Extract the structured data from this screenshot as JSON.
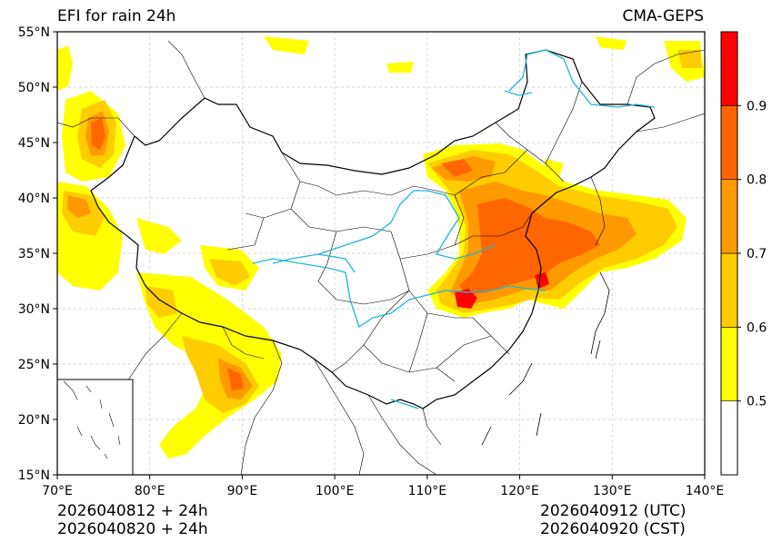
{
  "title_left": "EFI for rain 24h",
  "title_right": "CMA-GEPS",
  "footer": {
    "left_line1": "2026040812 + 24h",
    "left_line2": "2026040820 + 24h",
    "right_line1": "2026040912 (UTC)",
    "right_line2": "2026040920 (CST)"
  },
  "map": {
    "lon_range": [
      70,
      140
    ],
    "lat_range": [
      15,
      55
    ],
    "lon_ticks": [
      {
        "value": 70,
        "label": "70°E"
      },
      {
        "value": 80,
        "label": "80°E"
      },
      {
        "value": 90,
        "label": "90°E"
      },
      {
        "value": 100,
        "label": "100°E"
      },
      {
        "value": 110,
        "label": "110°E"
      },
      {
        "value": 120,
        "label": "120°E"
      },
      {
        "value": 130,
        "label": "130°E"
      },
      {
        "value": 140,
        "label": "140°E"
      }
    ],
    "lat_ticks": [
      {
        "value": 15,
        "label": "15°N"
      },
      {
        "value": 20,
        "label": "20°N"
      },
      {
        "value": 25,
        "label": "25°N"
      },
      {
        "value": 30,
        "label": "30°N"
      },
      {
        "value": 35,
        "label": "35°N"
      },
      {
        "value": 40,
        "label": "40°N"
      },
      {
        "value": 45,
        "label": "45°N"
      },
      {
        "value": 50,
        "label": "50°N"
      },
      {
        "value": 55,
        "label": "55°N"
      }
    ],
    "grid": true
  },
  "colorbar": {
    "levels": [
      0.5,
      0.6,
      0.7,
      0.8,
      0.9
    ],
    "labels": [
      "0.5",
      "0.6",
      "0.7",
      "0.8",
      "0.9"
    ],
    "colors": [
      "#ffffff",
      "#ffff00",
      "#ffcc00",
      "#ff9900",
      "#ff6600",
      "#ff0000"
    ]
  },
  "features": {
    "river_color": "#1fb5d6",
    "border_color": "#000000"
  }
}
